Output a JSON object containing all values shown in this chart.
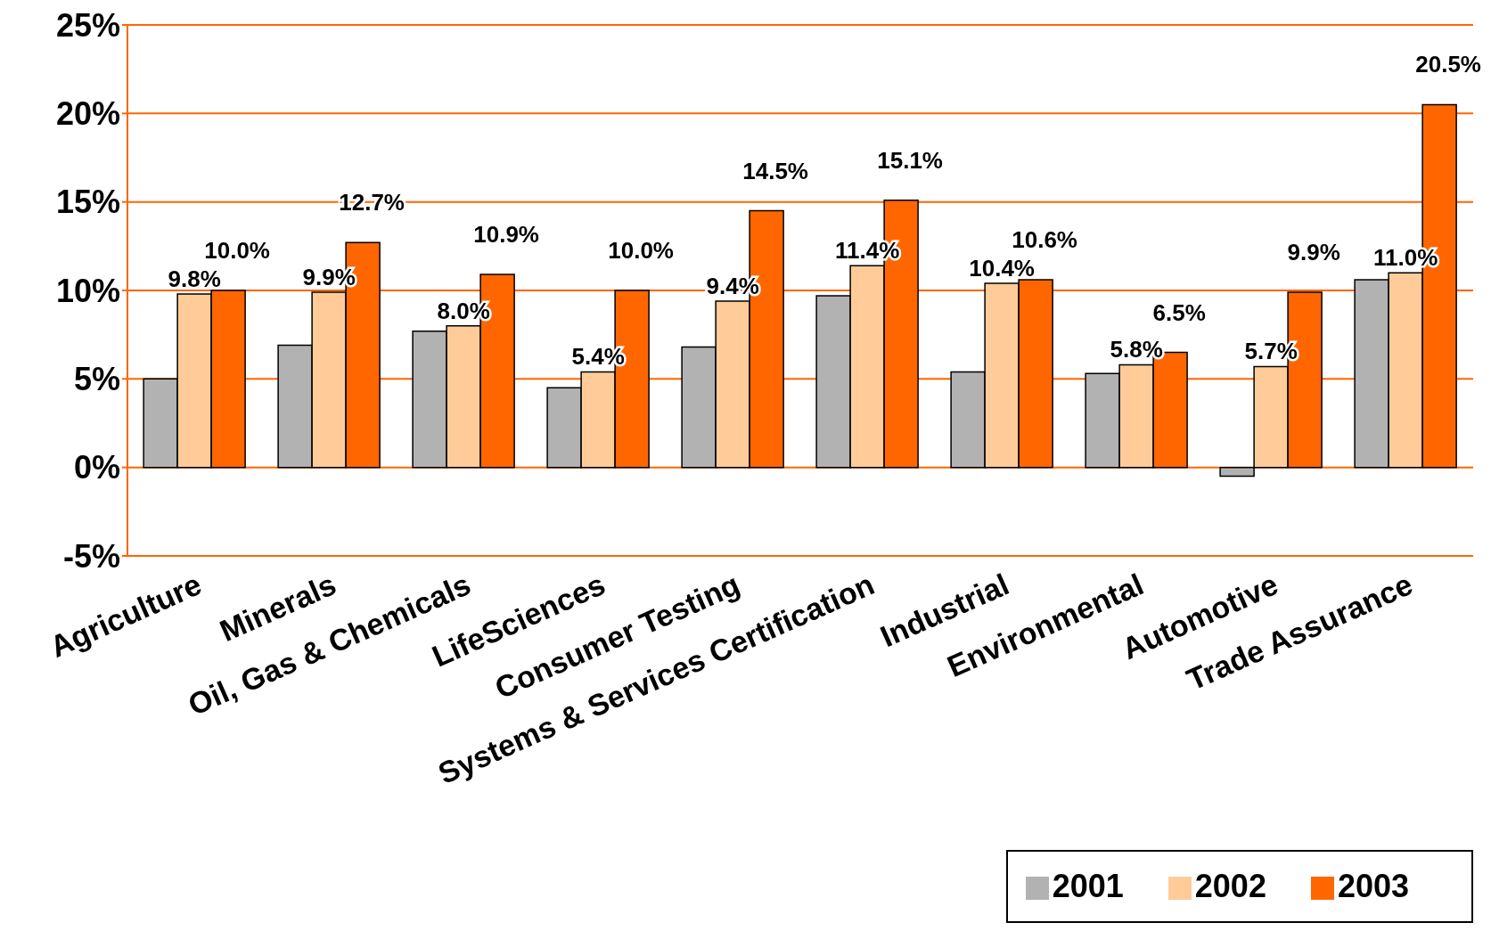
{
  "chart_data": {
    "type": "bar",
    "categories": [
      "Agriculture",
      "Minerals",
      "Oil, Gas & Chemicals",
      "LifeSciences",
      "Consumer Testing",
      "Systems & Services Certification",
      "Industrial",
      "Environmental",
      "Automotive",
      "Trade Assurance"
    ],
    "series": [
      {
        "name": "2001",
        "color": "#b2b2b2",
        "values": [
          5.0,
          6.9,
          7.7,
          4.5,
          6.8,
          9.7,
          5.4,
          5.3,
          -0.5,
          10.6
        ]
      },
      {
        "name": "2002",
        "color": "#ffcc99",
        "values": [
          9.8,
          9.9,
          8.0,
          5.4,
          9.4,
          11.4,
          10.4,
          5.8,
          5.7,
          11.0
        ],
        "value_labels": [
          "9.8%",
          "9.9%",
          "8.0%",
          "5.4%",
          "9.4%",
          "11.4%",
          "10.4%",
          "5.8%",
          "5.7%",
          "11.0%"
        ]
      },
      {
        "name": "2003",
        "color": "#ff6600",
        "values": [
          10.0,
          12.7,
          10.9,
          10.0,
          14.5,
          15.1,
          10.6,
          6.5,
          9.9,
          20.5
        ],
        "value_labels": [
          "10.0%",
          "12.7%",
          "10.9%",
          "10.0%",
          "14.5%",
          "15.1%",
          "10.6%",
          "6.5%",
          "9.9%",
          "20.5%"
        ]
      }
    ],
    "ylim": [
      -5,
      25
    ],
    "yticks": [
      {
        "value": -5,
        "label": "-5%"
      },
      {
        "value": 0,
        "label": "0%"
      },
      {
        "value": 5,
        "label": "5%"
      },
      {
        "value": 10,
        "label": "10%"
      },
      {
        "value": 15,
        "label": "15%"
      },
      {
        "value": 20,
        "label": "20%"
      },
      {
        "value": 25,
        "label": "25%"
      }
    ],
    "grid": "y",
    "legend": "bottom right"
  }
}
